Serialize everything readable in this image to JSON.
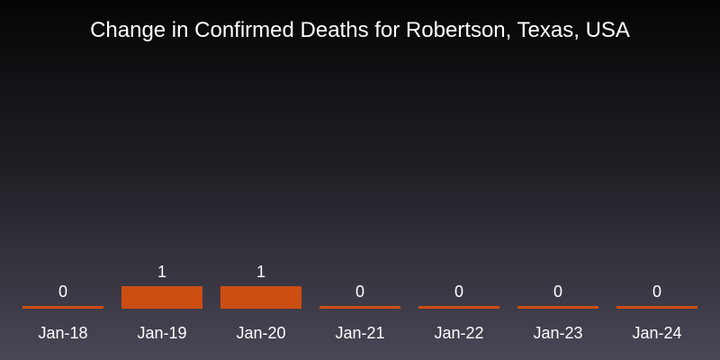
{
  "chart_data": {
    "type": "bar",
    "title": "Change in Confirmed Deaths for Robertson, Texas, USA",
    "categories": [
      "Jan-18",
      "Jan-19",
      "Jan-20",
      "Jan-21",
      "Jan-22",
      "Jan-23",
      "Jan-24"
    ],
    "values": [
      0,
      1,
      1,
      0,
      0,
      0,
      0
    ],
    "data_labels": [
      "0",
      "1",
      "1",
      "0",
      "0",
      "0",
      "0"
    ],
    "xlabel": "",
    "ylabel": "",
    "ylim": [
      0,
      1
    ],
    "grid": false,
    "legend": "none",
    "bar_color": "#cc4e12",
    "text_color": "#ffffff"
  }
}
